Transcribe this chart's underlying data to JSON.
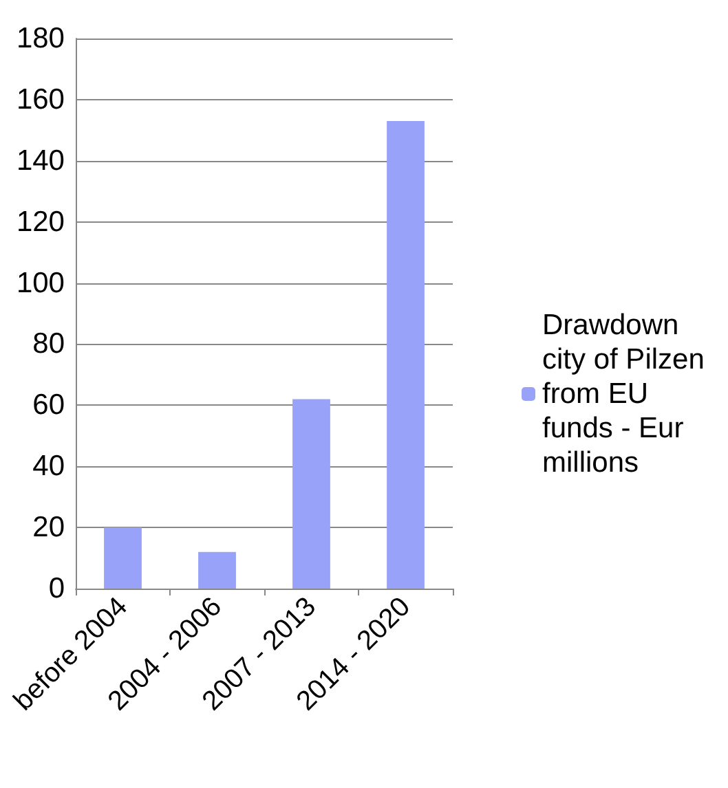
{
  "chart_data": {
    "type": "bar",
    "categories": [
      "before 2004",
      "2004 - 2006",
      "2007 - 2013",
      "2014 - 2020"
    ],
    "series": [
      {
        "name": "Drawdown city of Pilzen from EU funds - Eur millions",
        "color": "#98a2f8",
        "values": [
          20,
          12,
          62,
          153
        ]
      }
    ],
    "ylim": [
      0,
      180
    ],
    "yticks": [
      0,
      20,
      40,
      60,
      80,
      100,
      120,
      140,
      160,
      180
    ],
    "grid": "y",
    "legend": "right"
  }
}
